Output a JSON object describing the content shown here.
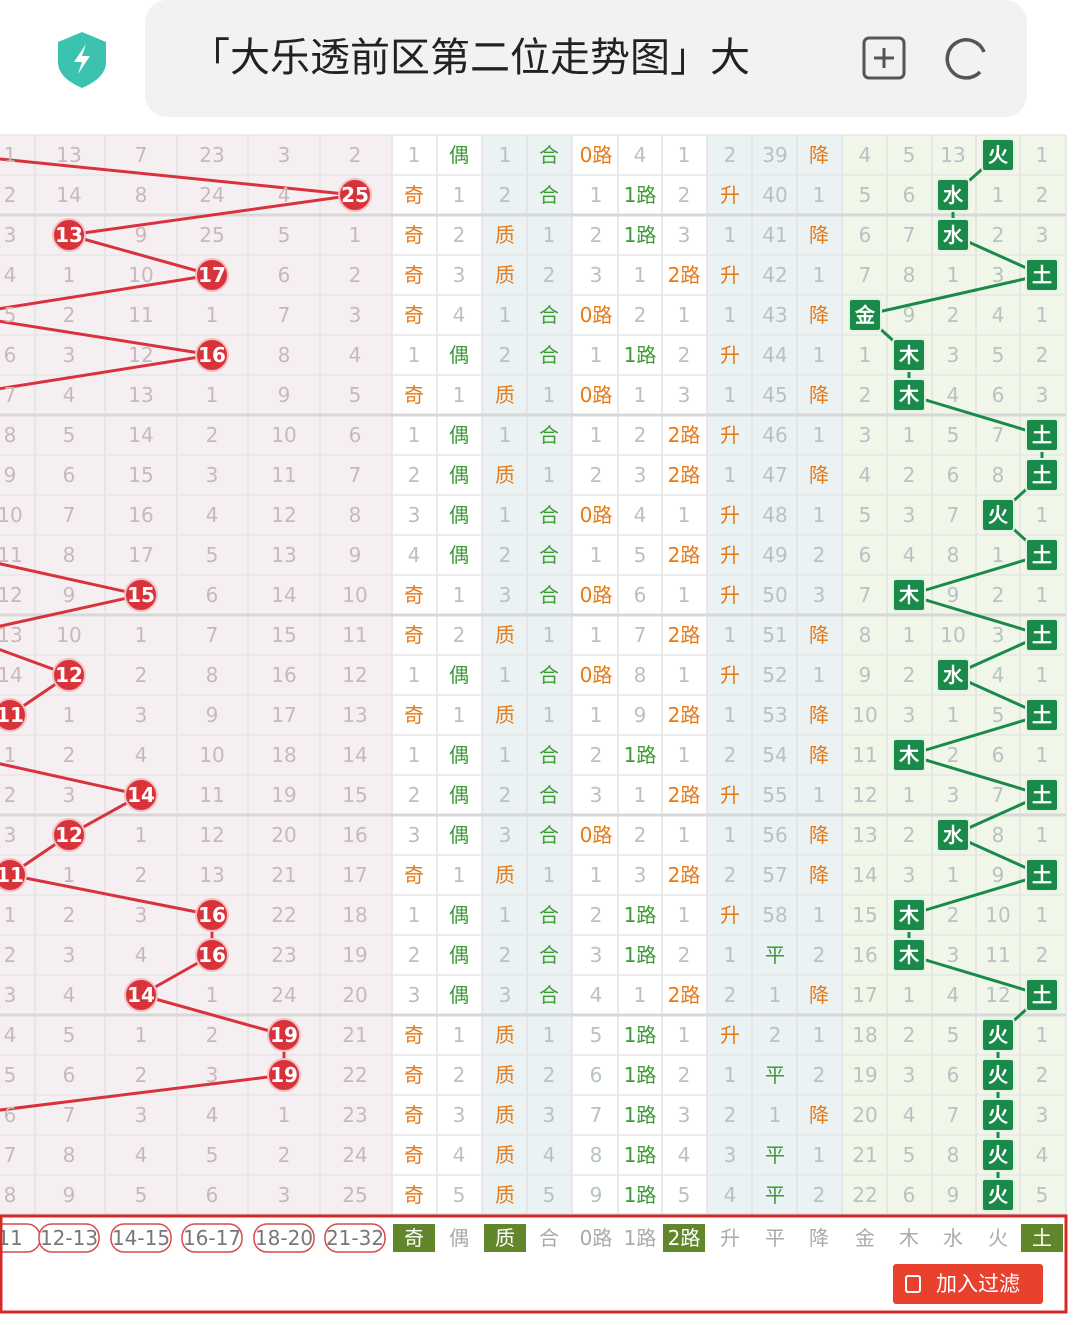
{
  "header": {
    "title": "「大乐透前区第二位走势图」大"
  },
  "table": {
    "rows": [
      [
        1,
        13,
        7,
        23,
        3,
        2,
        1,
        "偶",
        1,
        "合",
        "0路",
        4,
        1,
        2,
        39,
        "降",
        4,
        5,
        13,
        "火",
        1
      ],
      [
        2,
        14,
        8,
        24,
        4,
        {
          "ball": 25
        },
        "奇",
        1,
        2,
        "合",
        1,
        "1路",
        2,
        "升",
        40,
        1,
        5,
        6,
        "水",
        1,
        2
      ],
      [
        3,
        {
          "ball": 13
        },
        9,
        25,
        5,
        1,
        "奇",
        2,
        "质",
        1,
        2,
        "1路",
        3,
        1,
        41,
        "降",
        6,
        7,
        "水",
        2,
        3
      ],
      [
        4,
        1,
        10,
        {
          "ball": 17
        },
        6,
        2,
        "奇",
        3,
        "质",
        2,
        3,
        1,
        "2路",
        "升",
        42,
        1,
        7,
        8,
        1,
        3,
        "土"
      ],
      [
        5,
        2,
        11,
        1,
        7,
        3,
        "奇",
        4,
        1,
        "合",
        "0路",
        2,
        1,
        1,
        43,
        "降",
        "金",
        9,
        2,
        4,
        1
      ],
      [
        6,
        3,
        12,
        {
          "ball": 16
        },
        8,
        4,
        1,
        "偶",
        2,
        "合",
        1,
        "1路",
        2,
        "升",
        44,
        1,
        1,
        "木",
        3,
        5,
        2
      ],
      [
        7,
        4,
        13,
        1,
        9,
        5,
        "奇",
        1,
        "质",
        1,
        "0路",
        1,
        3,
        1,
        45,
        "降",
        2,
        "木",
        4,
        6,
        3
      ],
      [
        8,
        5,
        14,
        2,
        10,
        6,
        1,
        "偶",
        1,
        "合",
        1,
        2,
        "2路",
        "升",
        46,
        1,
        3,
        1,
        5,
        7,
        "土"
      ],
      [
        9,
        6,
        15,
        3,
        11,
        7,
        2,
        "偶",
        "质",
        1,
        2,
        3,
        "2路",
        1,
        47,
        "降",
        4,
        2,
        6,
        8,
        "土"
      ],
      [
        10,
        7,
        16,
        4,
        12,
        8,
        3,
        "偶",
        1,
        "合",
        "0路",
        4,
        1,
        "升",
        48,
        1,
        5,
        3,
        7,
        "火",
        1
      ],
      [
        11,
        8,
        17,
        5,
        13,
        9,
        4,
        "偶",
        2,
        "合",
        1,
        5,
        "2路",
        "升",
        49,
        2,
        6,
        4,
        8,
        1,
        "土"
      ],
      [
        12,
        9,
        {
          "ball": 15
        },
        6,
        14,
        10,
        "奇",
        1,
        3,
        "合",
        "0路",
        6,
        1,
        "升",
        50,
        3,
        7,
        "木",
        9,
        2,
        1
      ],
      [
        13,
        10,
        1,
        7,
        15,
        11,
        "奇",
        2,
        "质",
        1,
        1,
        7,
        "2路",
        1,
        51,
        "降",
        8,
        1,
        10,
        3,
        "土"
      ],
      [
        14,
        {
          "ball": 12
        },
        2,
        8,
        16,
        12,
        1,
        "偶",
        1,
        "合",
        "0路",
        8,
        1,
        "升",
        52,
        1,
        9,
        2,
        "水",
        4,
        1
      ],
      [
        {
          "ball": 11
        },
        1,
        3,
        9,
        17,
        13,
        "奇",
        1,
        "质",
        1,
        1,
        9,
        "2路",
        1,
        53,
        "降",
        10,
        3,
        1,
        5,
        "土"
      ],
      [
        1,
        2,
        4,
        10,
        18,
        14,
        1,
        "偶",
        1,
        "合",
        2,
        "1路",
        1,
        2,
        54,
        "降",
        11,
        "木",
        2,
        6,
        1
      ],
      [
        2,
        3,
        {
          "ball": 14
        },
        11,
        19,
        15,
        2,
        "偶",
        2,
        "合",
        3,
        1,
        "2路",
        "升",
        55,
        1,
        12,
        1,
        3,
        7,
        "土"
      ],
      [
        3,
        {
          "ball": 12
        },
        1,
        12,
        20,
        16,
        3,
        "偶",
        3,
        "合",
        "0路",
        2,
        1,
        1,
        56,
        "降",
        13,
        2,
        "水",
        8,
        1
      ],
      [
        {
          "ball": 11
        },
        1,
        2,
        13,
        21,
        17,
        "奇",
        1,
        "质",
        1,
        1,
        3,
        "2路",
        2,
        57,
        "降",
        14,
        3,
        1,
        9,
        "土"
      ],
      [
        1,
        2,
        3,
        {
          "ball": 16
        },
        22,
        18,
        1,
        "偶",
        1,
        "合",
        2,
        "1路",
        1,
        "升",
        58,
        1,
        15,
        "木",
        2,
        10,
        1
      ],
      [
        2,
        3,
        4,
        {
          "ball": 16
        },
        23,
        19,
        2,
        "偶",
        2,
        "合",
        3,
        "1路",
        2,
        1,
        "平",
        2,
        16,
        "木",
        3,
        11,
        2
      ],
      [
        3,
        4,
        {
          "ball": 14
        },
        1,
        24,
        20,
        3,
        "偶",
        3,
        "合",
        4,
        1,
        "2路",
        2,
        1,
        "降",
        17,
        1,
        4,
        12,
        "土"
      ],
      [
        4,
        5,
        1,
        2,
        {
          "ball": 19
        },
        21,
        "奇",
        1,
        "质",
        1,
        5,
        "1路",
        1,
        "升",
        2,
        1,
        18,
        2,
        5,
        "火",
        1
      ],
      [
        5,
        6,
        2,
        3,
        {
          "ball": 19
        },
        22,
        "奇",
        2,
        "质",
        2,
        6,
        "1路",
        2,
        1,
        "平",
        2,
        19,
        3,
        6,
        "火",
        2
      ],
      [
        6,
        7,
        3,
        4,
        1,
        23,
        "奇",
        3,
        "质",
        3,
        7,
        "1路",
        3,
        2,
        1,
        "降",
        20,
        4,
        7,
        "火",
        3
      ],
      [
        7,
        8,
        4,
        5,
        2,
        24,
        "奇",
        4,
        "质",
        4,
        8,
        "1路",
        4,
        3,
        "平",
        1,
        21,
        5,
        8,
        "火",
        4
      ],
      [
        8,
        9,
        5,
        6,
        3,
        25,
        "奇",
        5,
        "质",
        5,
        9,
        "1路",
        5,
        4,
        "平",
        2,
        22,
        6,
        9,
        "火",
        5
      ]
    ]
  },
  "filters": [
    {
      "label": "11",
      "selected": false
    },
    {
      "label": "12-13",
      "selected": false
    },
    {
      "label": "14-15",
      "selected": false
    },
    {
      "label": "16-17",
      "selected": false
    },
    {
      "label": "18-20",
      "selected": false
    },
    {
      "label": "21-32",
      "selected": false
    },
    {
      "label": "奇",
      "selected": true
    },
    {
      "label": "偶",
      "selected": false
    },
    {
      "label": "质",
      "selected": true
    },
    {
      "label": "合",
      "selected": false
    },
    {
      "label": "0路",
      "selected": false
    },
    {
      "label": "1路",
      "selected": false
    },
    {
      "label": "2路",
      "selected": true
    },
    {
      "label": "升",
      "selected": false
    },
    {
      "label": "平",
      "selected": false
    },
    {
      "label": "降",
      "selected": false
    },
    {
      "label": "金",
      "selected": false
    },
    {
      "label": "木",
      "selected": false
    },
    {
      "label": "水",
      "selected": false
    },
    {
      "label": "火",
      "selected": false
    },
    {
      "label": "土",
      "selected": true
    }
  ],
  "button": {
    "label": "加入过滤"
  }
}
